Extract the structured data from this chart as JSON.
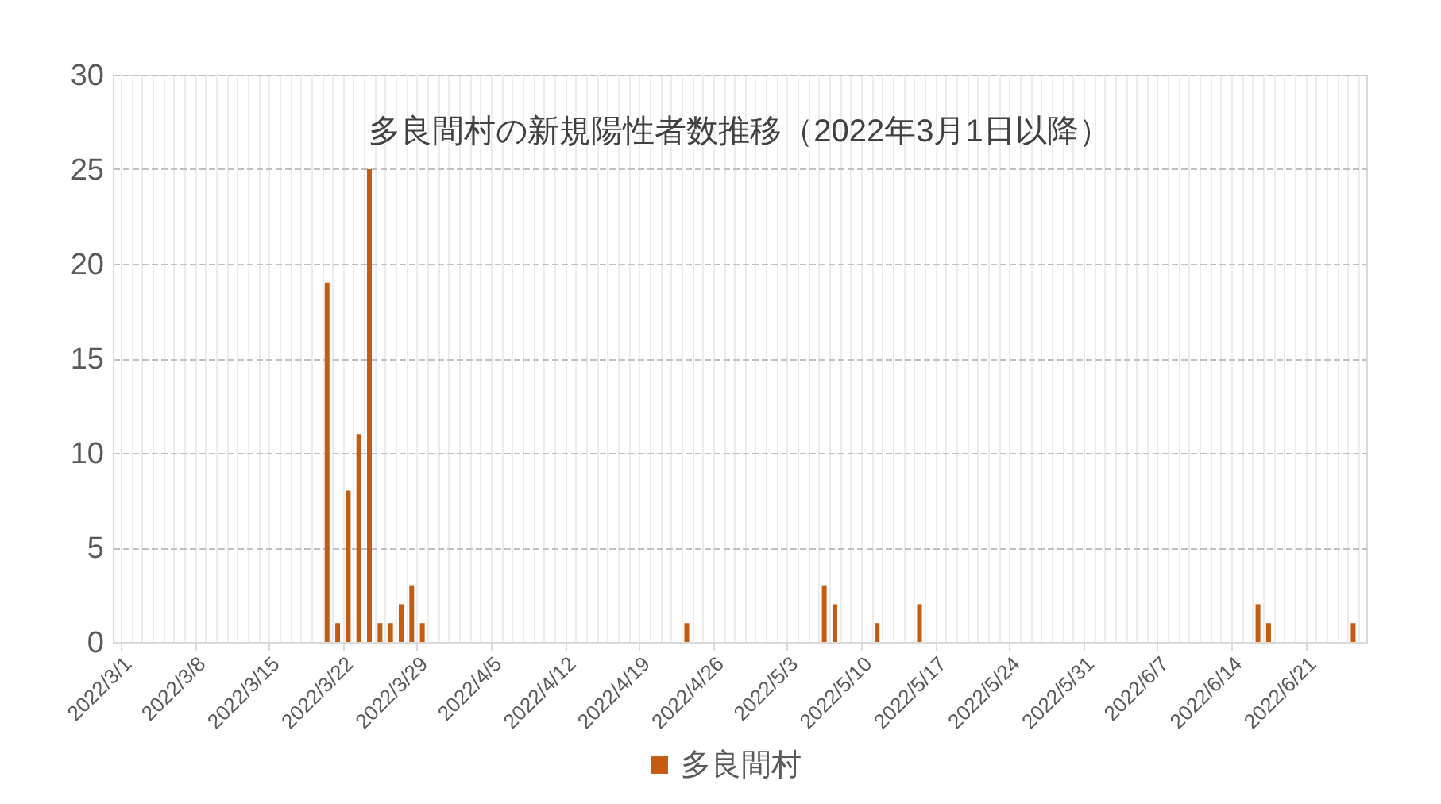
{
  "chart_data": {
    "type": "bar",
    "title": "多良間村の新規陽性者数推移（2022年3月1日以降）",
    "x": [
      "2022-03-20",
      "2022-03-21",
      "2022-03-22",
      "2022-03-23",
      "2022-03-24",
      "2022-03-25",
      "2022-03-26",
      "2022-03-27",
      "2022-03-28",
      "2022-03-29",
      "2022-04-23",
      "2022-05-06",
      "2022-05-07",
      "2022-05-11",
      "2022-05-15",
      "2022-06-16",
      "2022-06-17",
      "2022-06-25"
    ],
    "series": [
      {
        "name": "多良間村",
        "color": "#c55a11",
        "values": [
          19,
          1,
          8,
          11,
          25,
          1,
          1,
          2,
          3,
          1,
          1,
          3,
          2,
          1,
          2,
          2,
          1,
          1
        ]
      }
    ],
    "xlim": [
      "2022-03-01",
      "2022-06-26"
    ],
    "xticks": [
      {
        "value": "2022-03-01",
        "label": "2022/3/1"
      },
      {
        "value": "2022-03-08",
        "label": "2022/3/8"
      },
      {
        "value": "2022-03-15",
        "label": "2022/3/15"
      },
      {
        "value": "2022-03-22",
        "label": "2022/3/22"
      },
      {
        "value": "2022-03-29",
        "label": "2022/3/29"
      },
      {
        "value": "2022-04-05",
        "label": "2022/4/5"
      },
      {
        "value": "2022-04-12",
        "label": "2022/4/12"
      },
      {
        "value": "2022-04-19",
        "label": "2022/4/19"
      },
      {
        "value": "2022-04-26",
        "label": "2022/4/26"
      },
      {
        "value": "2022-05-03",
        "label": "2022/5/3"
      },
      {
        "value": "2022-05-10",
        "label": "2022/5/10"
      },
      {
        "value": "2022-05-17",
        "label": "2022/5/17"
      },
      {
        "value": "2022-05-24",
        "label": "2022/5/24"
      },
      {
        "value": "2022-05-31",
        "label": "2022/5/31"
      },
      {
        "value": "2022-06-07",
        "label": "2022/6/7"
      },
      {
        "value": "2022-06-14",
        "label": "2022/6/14"
      },
      {
        "value": "2022-06-21",
        "label": "2022/6/21"
      }
    ],
    "ylim": [
      0,
      30
    ],
    "yticks": [
      0,
      5,
      10,
      15,
      20,
      25,
      30
    ],
    "grid": true,
    "legend": "bottom"
  }
}
